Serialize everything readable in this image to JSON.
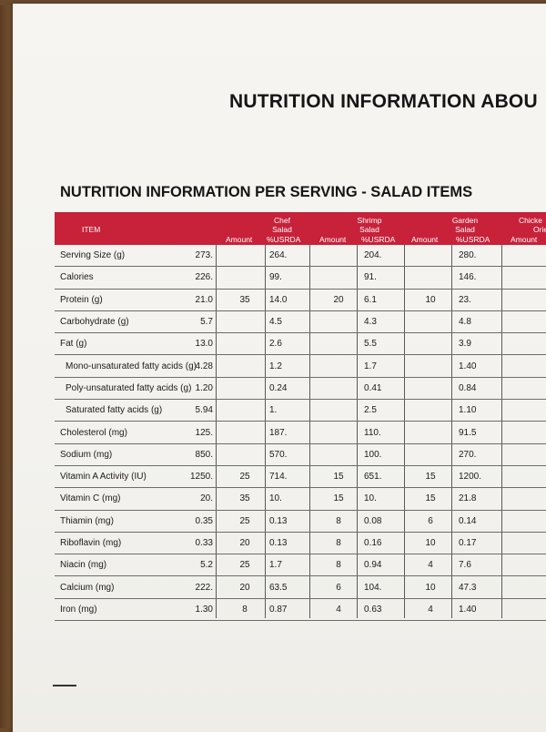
{
  "main_title": "NUTRITION INFORMATION ABOU",
  "sub_title": "NUTRITION INFORMATION PER SERVING - SALAD ITEMS",
  "header": {
    "item": "ITEM",
    "groups": [
      {
        "line1": "Chef",
        "line2": "Salad"
      },
      {
        "line1": "Shrimp",
        "line2": "Salad"
      },
      {
        "line1": "Garden",
        "line2": "Salad"
      },
      {
        "line1": "Chicke",
        "line2": "Orie"
      }
    ],
    "sub": [
      "Amount",
      "%USRDA",
      "Amount",
      "%USRDA",
      "Amount",
      "%USRDA",
      "Amount"
    ]
  },
  "rows": [
    {
      "label": "Serving Size (g)",
      "indent": false,
      "c": [
        "273.",
        "",
        "264.",
        "",
        "204.",
        "",
        "280."
      ]
    },
    {
      "label": "Calories",
      "indent": false,
      "c": [
        "226.",
        "",
        "99.",
        "",
        "91.",
        "",
        "146."
      ]
    },
    {
      "label": "Protein (g)",
      "indent": false,
      "c": [
        "21.0",
        "35",
        "14.0",
        "20",
        "6.1",
        "10",
        "23."
      ]
    },
    {
      "label": "Carbohydrate (g)",
      "indent": false,
      "c": [
        "5.7",
        "",
        "4.5",
        "",
        "4.3",
        "",
        "4.8"
      ]
    },
    {
      "label": "Fat (g)",
      "indent": false,
      "c": [
        "13.0",
        "",
        "2.6",
        "",
        "5.5",
        "",
        "3.9"
      ]
    },
    {
      "label": "Mono-unsaturated fatty acids (g)",
      "indent": true,
      "c": [
        "4.28",
        "",
        "1.2",
        "",
        "1.7",
        "",
        "1.40"
      ]
    },
    {
      "label": "Poly-unsaturated fatty acids (g)",
      "indent": true,
      "c": [
        "1.20",
        "",
        "0.24",
        "",
        "0.41",
        "",
        "0.84"
      ]
    },
    {
      "label": "Saturated fatty acids (g)",
      "indent": true,
      "c": [
        "5.94",
        "",
        "1.",
        "",
        "2.5",
        "",
        "1.10"
      ]
    },
    {
      "label": "Cholesterol (mg)",
      "indent": false,
      "c": [
        "125.",
        "",
        "187.",
        "",
        "110.",
        "",
        "91.5"
      ]
    },
    {
      "label": "Sodium (mg)",
      "indent": false,
      "c": [
        "850.",
        "",
        "570.",
        "",
        "100.",
        "",
        "270."
      ]
    },
    {
      "label": "Vitamin A Activity (IU)",
      "indent": false,
      "c": [
        "1250.",
        "25",
        "714.",
        "15",
        "651.",
        "15",
        "1200."
      ]
    },
    {
      "label": "Vitamin C (mg)",
      "indent": false,
      "c": [
        "20.",
        "35",
        "10.",
        "15",
        "10.",
        "15",
        "21.8"
      ]
    },
    {
      "label": "Thiamin (mg)",
      "indent": false,
      "c": [
        "0.35",
        "25",
        "0.13",
        "8",
        "0.08",
        "6",
        "0.14"
      ]
    },
    {
      "label": "Riboflavin (mg)",
      "indent": false,
      "c": [
        "0.33",
        "20",
        "0.13",
        "8",
        "0.16",
        "10",
        "0.17"
      ]
    },
    {
      "label": "Niacin (mg)",
      "indent": false,
      "c": [
        "5.2",
        "25",
        "1.7",
        "8",
        "0.94",
        "4",
        "7.6"
      ]
    },
    {
      "label": "Calcium (mg)",
      "indent": false,
      "c": [
        "222.",
        "20",
        "63.5",
        "6",
        "104.",
        "10",
        "47.3"
      ]
    },
    {
      "label": "Iron (mg)",
      "indent": false,
      "c": [
        "1.30",
        "8",
        "0.87",
        "4",
        "0.63",
        "4",
        "1.40"
      ]
    }
  ],
  "colors": {
    "header_red": "#c8213a",
    "text": "#1a1a1a"
  }
}
